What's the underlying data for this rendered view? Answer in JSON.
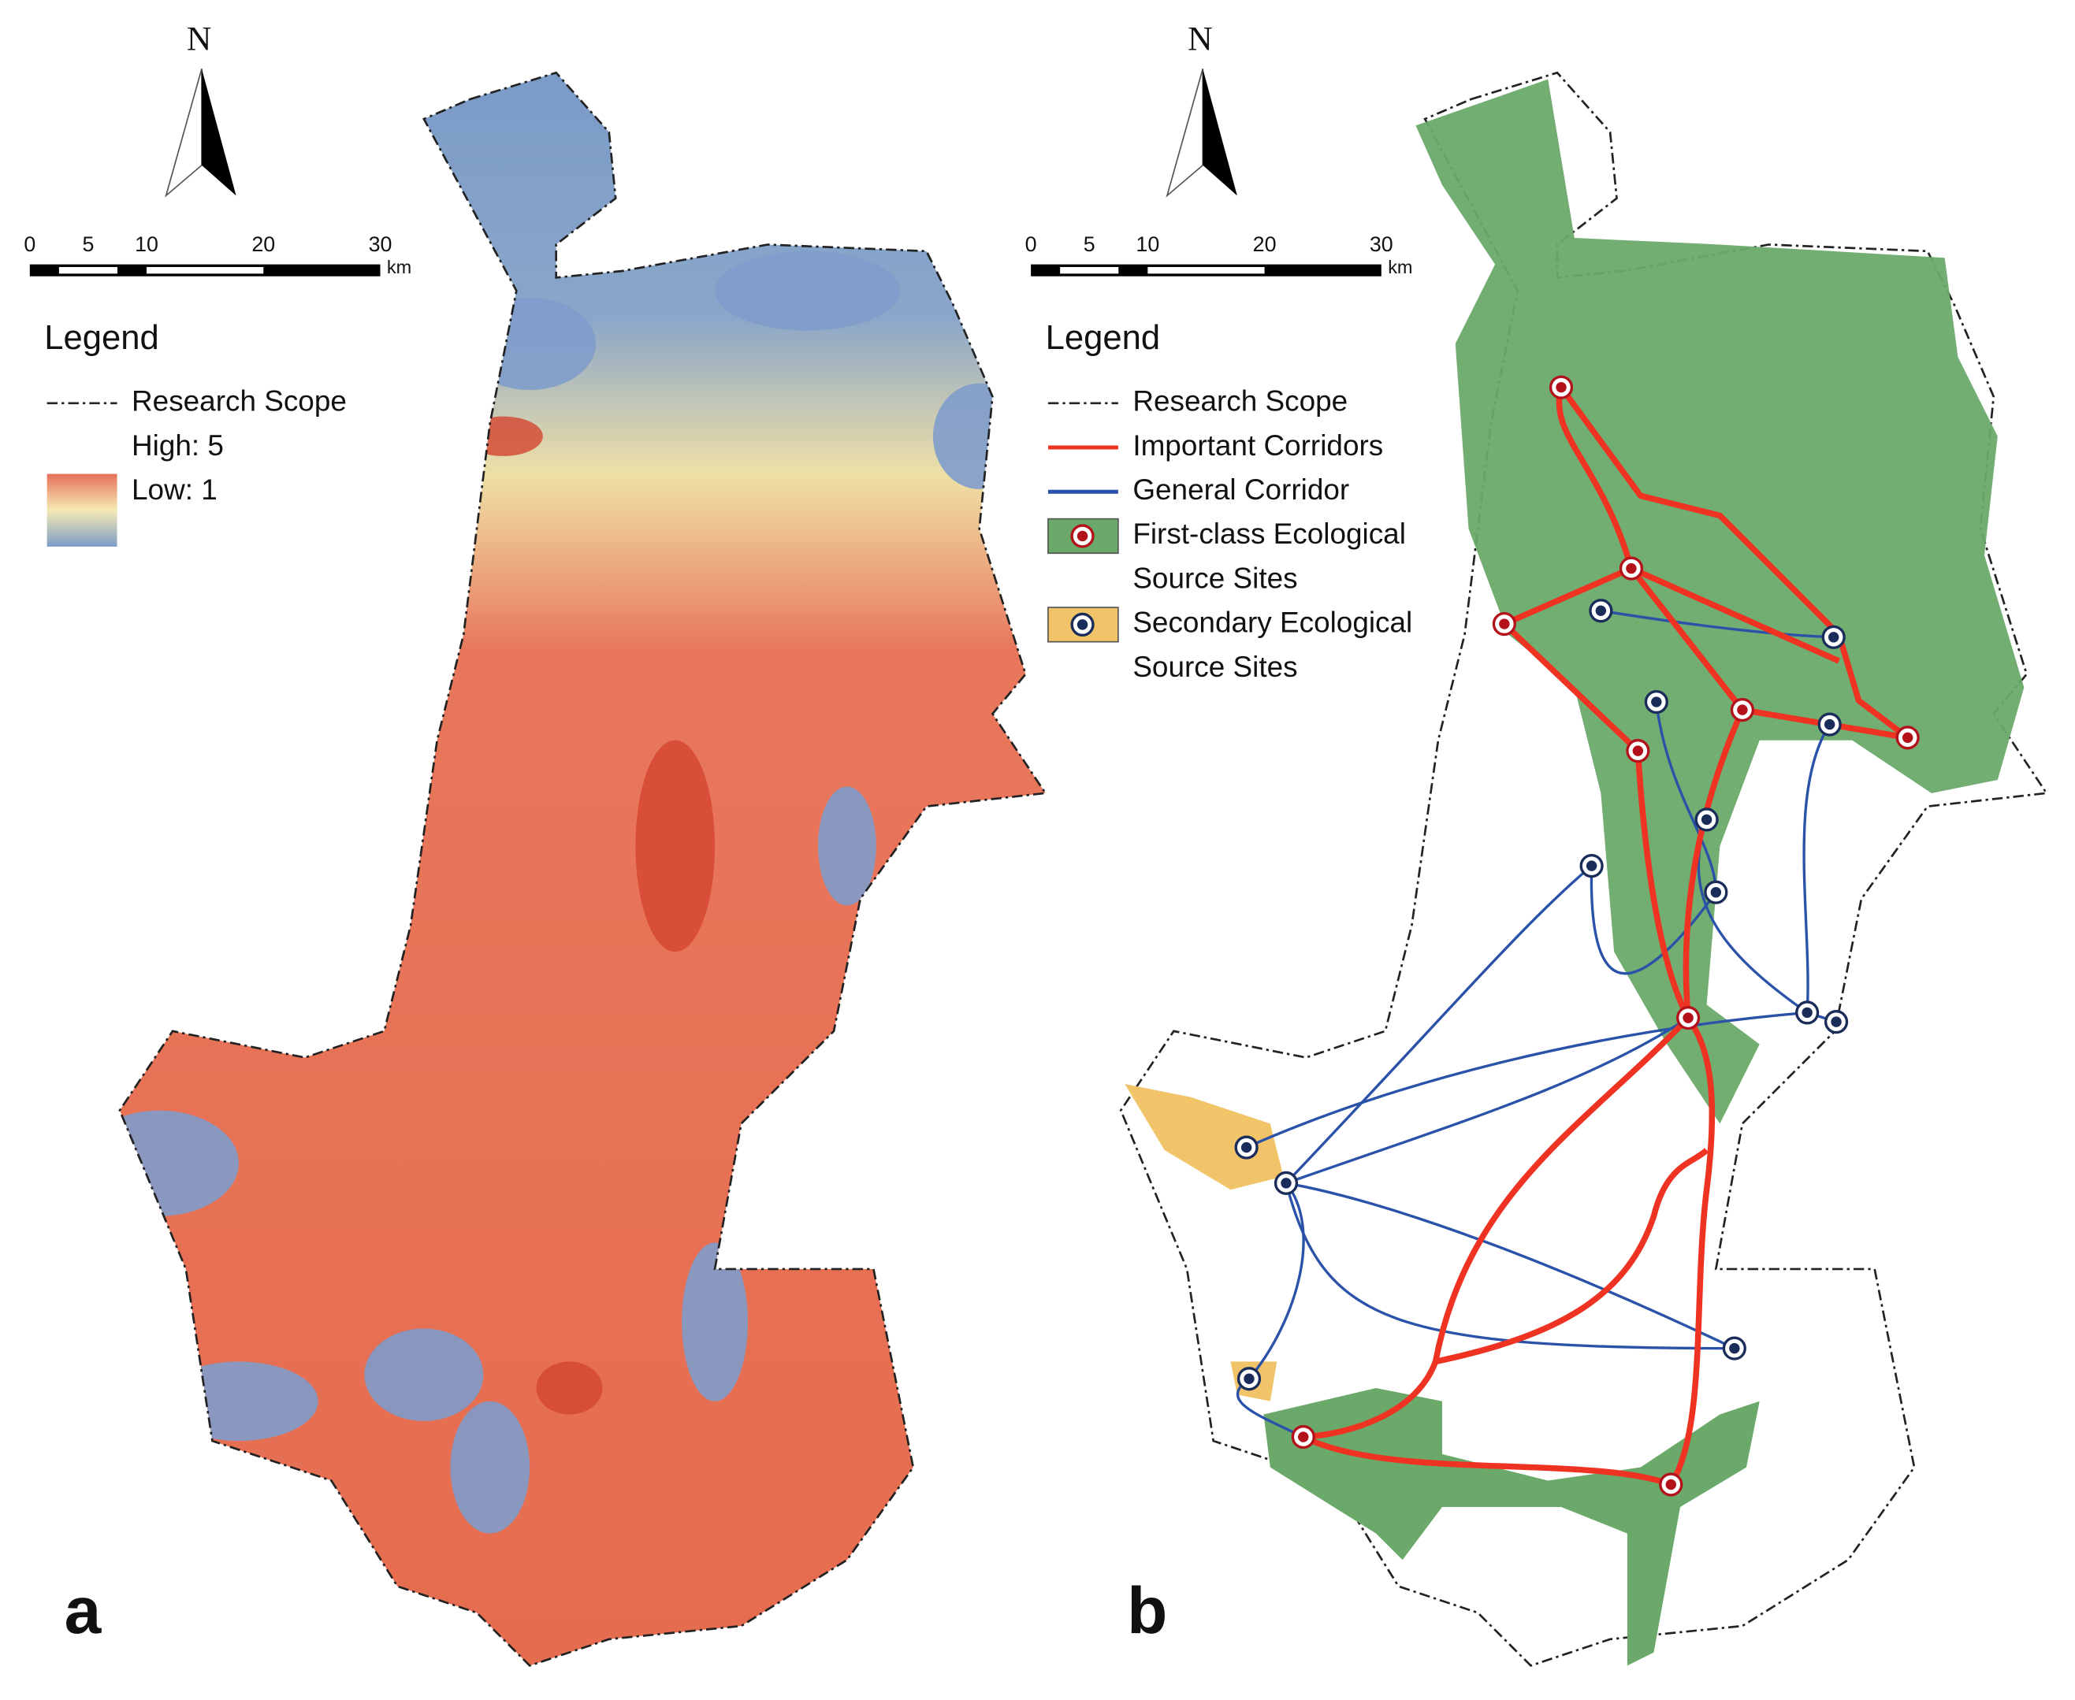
{
  "panels": [
    {
      "label": "a",
      "north": "N",
      "scale_bar": {
        "ticks": [
          0,
          5,
          10,
          20,
          30
        ],
        "unit": "km"
      },
      "legend": {
        "title": "Legend",
        "items": [
          {
            "lines": [
              "Research Scope"
            ]
          },
          {
            "lines": [
              "High: 5"
            ]
          },
          {
            "lines": [
              "Low: 1"
            ]
          }
        ]
      }
    },
    {
      "label": "b",
      "north": "N",
      "scale_bar": {
        "ticks": [
          0,
          5,
          10,
          20,
          30
        ],
        "unit": "km"
      },
      "legend": {
        "title": "Legend",
        "items": [
          {
            "lines": [
              "Research Scope"
            ]
          },
          {
            "lines": [
              "Important Corridors"
            ]
          },
          {
            "lines": [
              "General Corridor"
            ]
          },
          {
            "lines": [
              "First-class Ecological",
              "Source Sites"
            ]
          },
          {
            "lines": [
              "Secondary Ecological",
              "Source Sites"
            ]
          }
        ]
      }
    }
  ]
}
